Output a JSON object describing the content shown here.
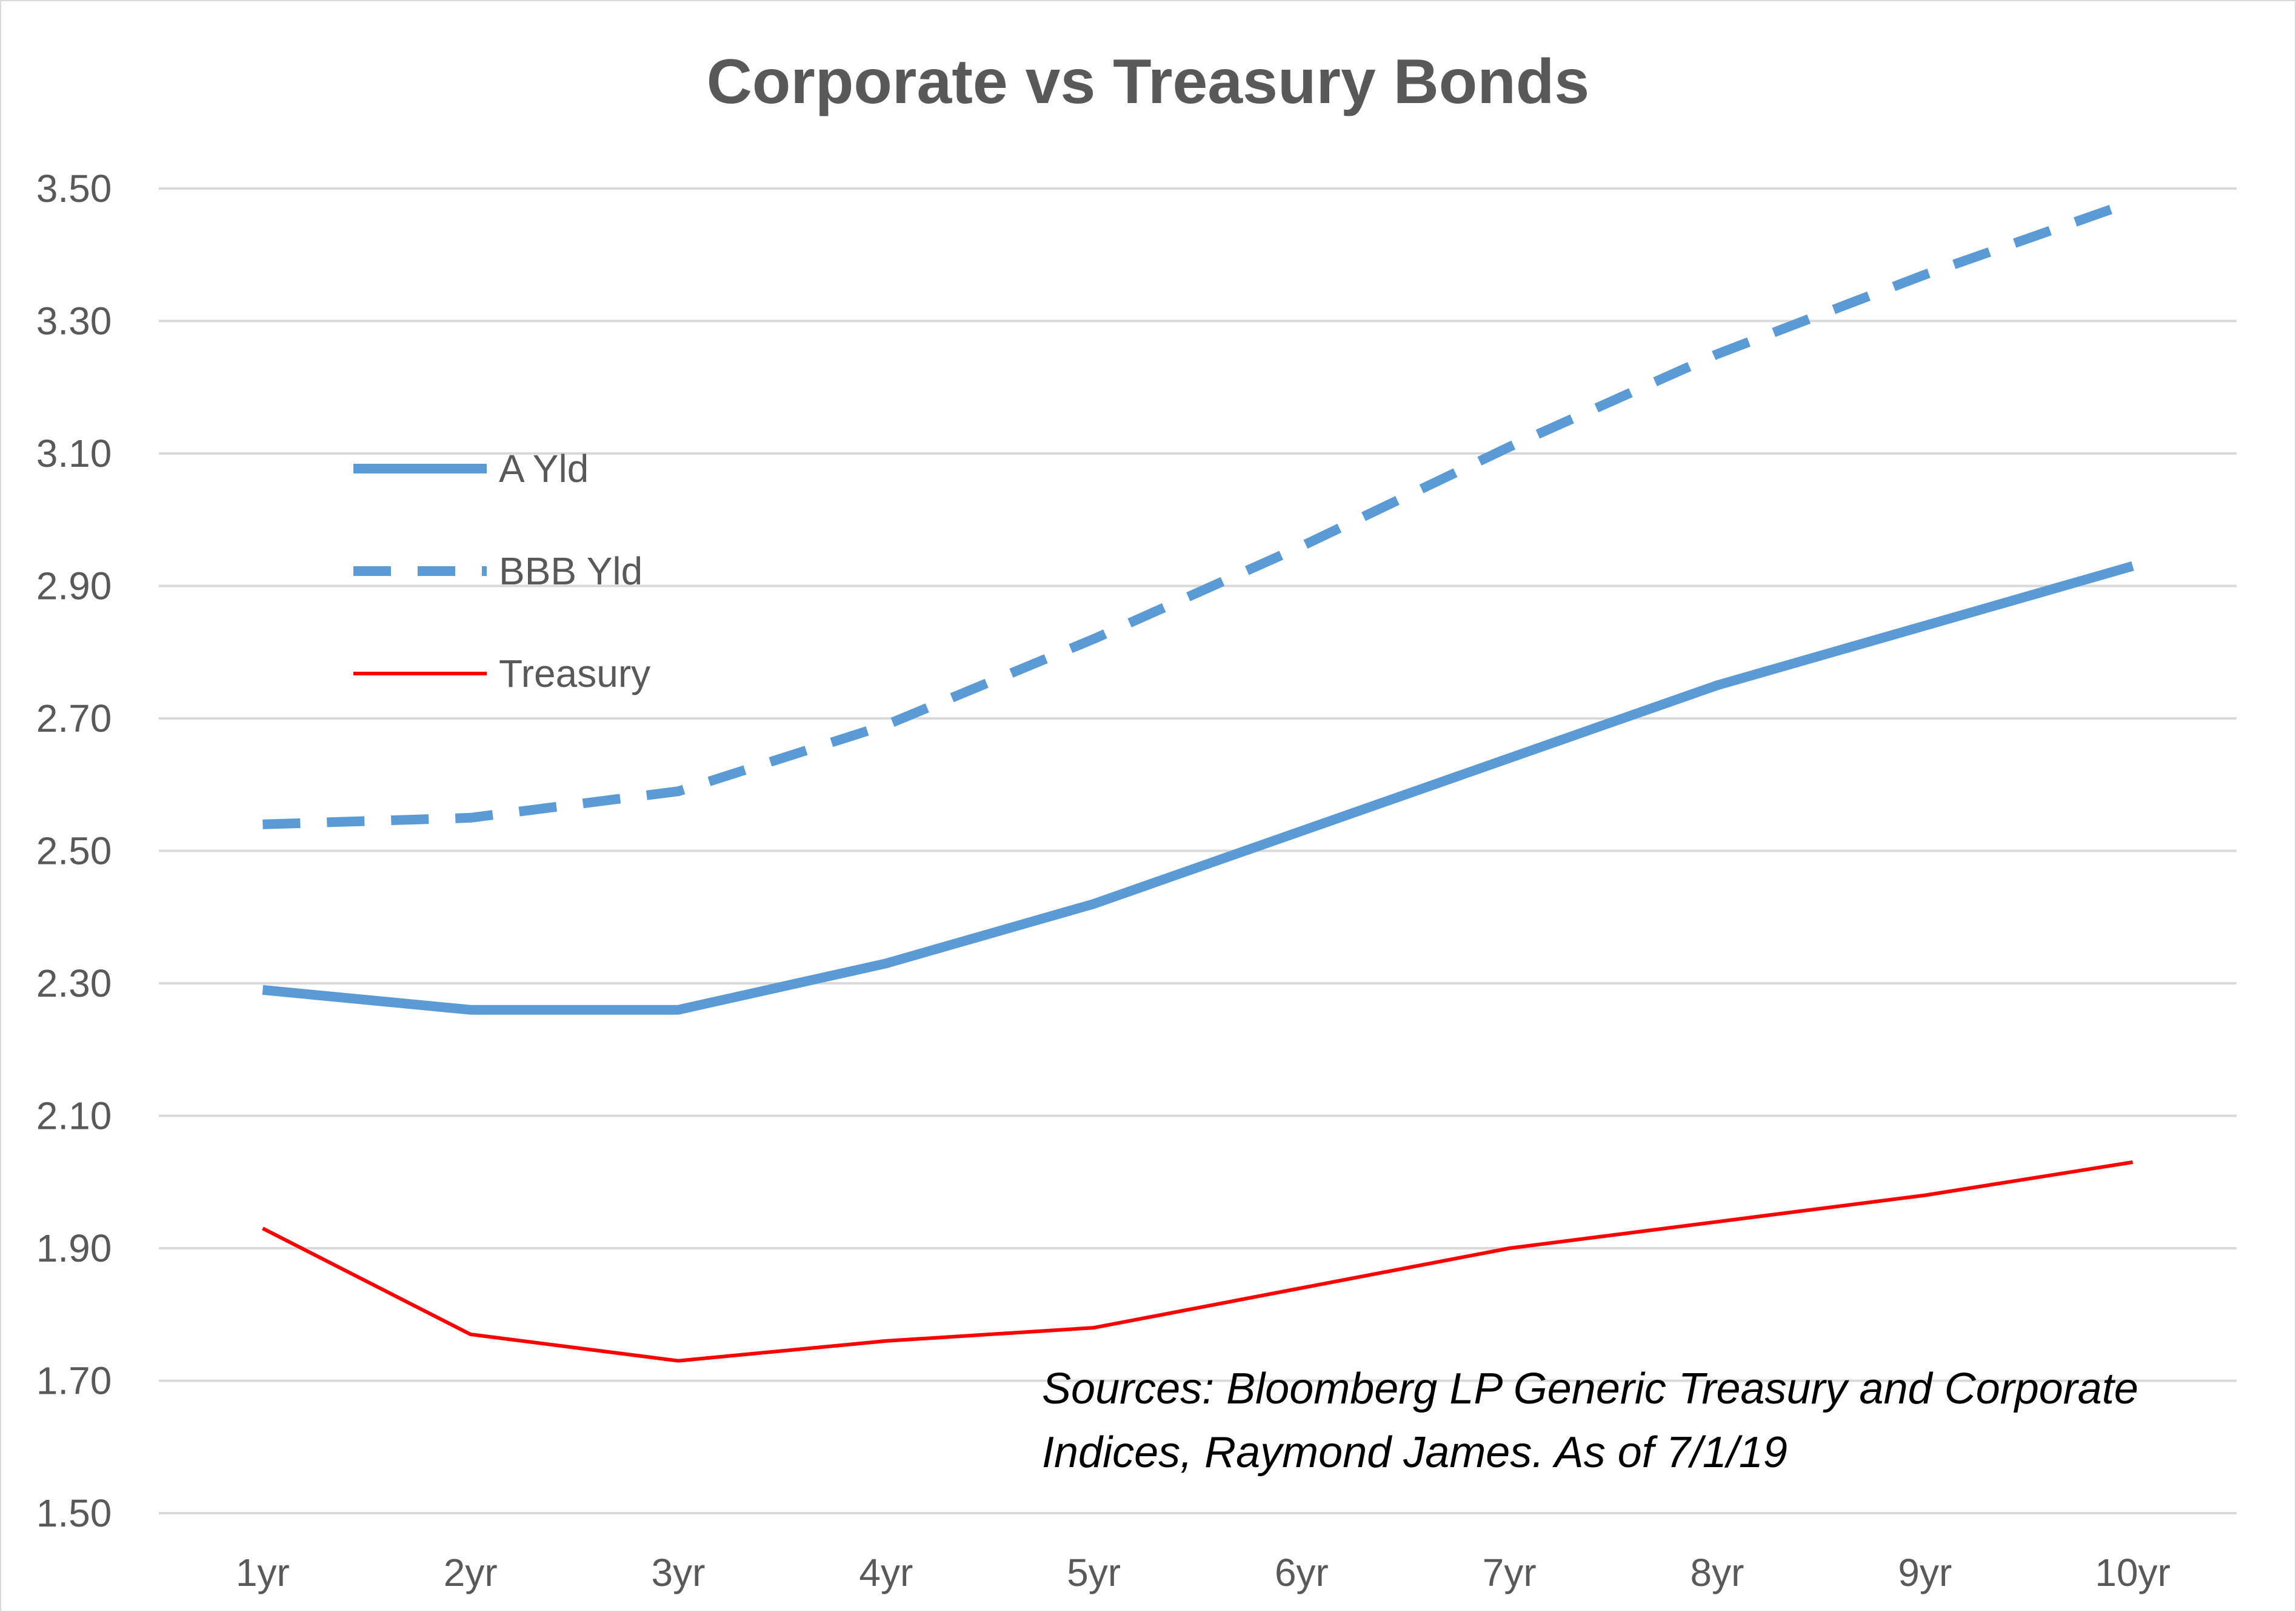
{
  "chart_data": {
    "type": "line",
    "title": "Corporate vs Treasury Bonds",
    "xlabel": "",
    "ylabel": "",
    "categories": [
      "1yr",
      "2yr",
      "3yr",
      "4yr",
      "5yr",
      "6yr",
      "7yr",
      "8yr",
      "9yr",
      "10yr"
    ],
    "ylim": [
      1.5,
      3.5
    ],
    "y_ticks": [
      "1.50",
      "1.70",
      "1.90",
      "2.10",
      "2.30",
      "2.50",
      "2.70",
      "2.90",
      "3.10",
      "3.30",
      "3.50"
    ],
    "grid": true,
    "legend_position": "upper-left",
    "series": [
      {
        "name": "A Yld",
        "style": "solid",
        "color": "#5b9bd5",
        "values": [
          2.29,
          2.26,
          2.26,
          2.33,
          2.42,
          2.53,
          2.64,
          2.75,
          2.84,
          2.93
        ]
      },
      {
        "name": "BBB Yld",
        "style": "dashed",
        "color": "#5b9bd5",
        "values": [
          2.54,
          2.55,
          2.59,
          2.69,
          2.82,
          2.96,
          3.11,
          3.25,
          3.37,
          3.48
        ]
      },
      {
        "name": "Treasury",
        "style": "thin",
        "color": "#ff0000",
        "values": [
          1.93,
          1.77,
          1.73,
          1.76,
          1.78,
          1.84,
          1.9,
          1.94,
          1.98,
          2.03
        ]
      }
    ],
    "annotation": {
      "lines": [
        "Sources: Bloomberg LP Generic Treasury and Corporate",
        "Indices, Raymond James.   As of 7/1/19"
      ]
    }
  }
}
